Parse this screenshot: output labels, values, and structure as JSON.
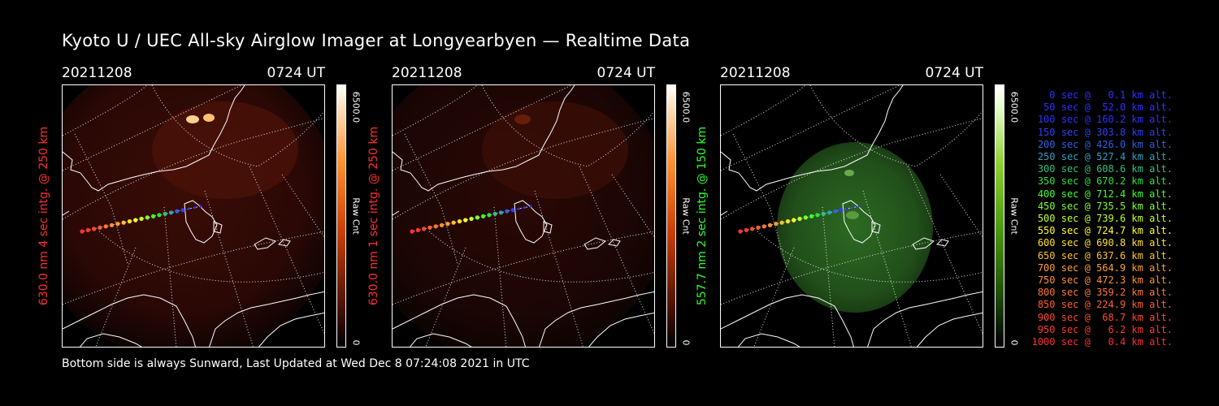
{
  "title": "Kyoto U / UEC All-sky Airglow Imager at Longyearbyen — Realtime Data",
  "footer": "Bottom side is always Sunward, Last Updated at Wed Dec  8 07:24:08 2021 in UTC",
  "panels": [
    {
      "date": "20211208",
      "time": "0724 UT",
      "side_label": "630.0 nm 4 sec intg. @ 250 km",
      "label_color": "#ff3030",
      "colorbar_max": "6500.0",
      "colorbar_min": "0",
      "colorbar_unit": "Raw Cnt",
      "colormap": "red"
    },
    {
      "date": "20211208",
      "time": "0724 UT",
      "side_label": "630.0 nm 1 sec intg. @ 250 km",
      "label_color": "#ff3030",
      "colorbar_max": "6500.0",
      "colorbar_min": "0",
      "colorbar_unit": "Raw Cnt",
      "colormap": "red"
    },
    {
      "date": "20211208",
      "time": "0724 UT",
      "side_label": "557.7 nm 2 sec intg. @ 150 km",
      "label_color": "#30ff30",
      "colorbar_max": "6500.0",
      "colorbar_min": "0",
      "colorbar_unit": "Raw Cnt",
      "colormap": "green"
    }
  ],
  "legend": [
    {
      "text": "   0 sec @   0.1 km alt.",
      "color": "#3030ff"
    },
    {
      "text": "  50 sec @  52.0 km alt.",
      "color": "#3030ff"
    },
    {
      "text": " 100 sec @ 160.2 km alt.",
      "color": "#3030ff"
    },
    {
      "text": " 150 sec @ 303.8 km alt.",
      "color": "#3040f0"
    },
    {
      "text": " 200 sec @ 426.0 km alt.",
      "color": "#3060e0"
    },
    {
      "text": " 250 sec @ 527.4 km alt.",
      "color": "#30a0c0"
    },
    {
      "text": " 300 sec @ 608.6 km alt.",
      "color": "#30c080"
    },
    {
      "text": " 350 sec @ 670.2 km alt.",
      "color": "#30e040"
    },
    {
      "text": " 400 sec @ 712.4 km alt.",
      "color": "#40ff30"
    },
    {
      "text": " 450 sec @ 735.5 km alt.",
      "color": "#80ff30"
    },
    {
      "text": " 500 sec @ 739.6 km alt.",
      "color": "#c0ff30"
    },
    {
      "text": " 550 sec @ 724.7 km alt.",
      "color": "#ffff30"
    },
    {
      "text": " 600 sec @ 690.8 km alt.",
      "color": "#ffe030"
    },
    {
      "text": " 650 sec @ 637.6 km alt.",
      "color": "#ffc030"
    },
    {
      "text": " 700 sec @ 564.9 km alt.",
      "color": "#ffa030"
    },
    {
      "text": " 750 sec @ 472.3 km alt.",
      "color": "#ff9030"
    },
    {
      "text": " 800 sec @ 359.2 km alt.",
      "color": "#ff7830"
    },
    {
      "text": " 850 sec @ 224.9 km alt.",
      "color": "#ff6030"
    },
    {
      "text": " 900 sec @  68.7 km alt.",
      "color": "#ff4830"
    },
    {
      "text": " 950 sec @   6.2 km alt.",
      "color": "#ff3830"
    },
    {
      "text": "1000 sec @   0.4 km alt.",
      "color": "#ff3030"
    }
  ]
}
